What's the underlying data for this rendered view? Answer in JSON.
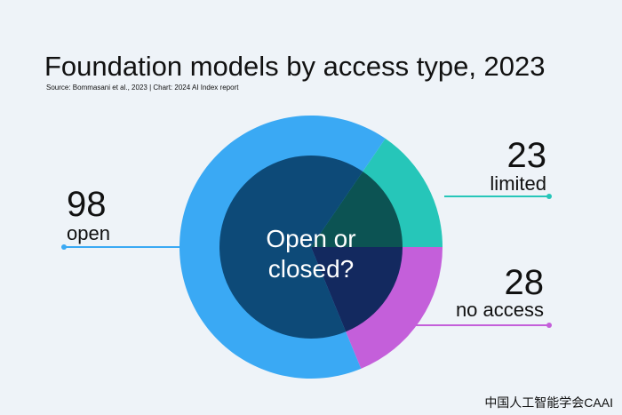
{
  "chart_data": {
    "type": "donut",
    "title": "Foundation models by access type, 2023",
    "subtitle": "Source: Bommasani et al., 2023 | Chart: 2024 AI Index report",
    "center_label": [
      "Open or",
      "closed?"
    ],
    "categories": [
      "open",
      "limited",
      "no access"
    ],
    "values": [
      98,
      23,
      28
    ],
    "colors": [
      "#3aa9f4",
      "#26c6b9",
      "#c45fda"
    ],
    "inner_colors": [
      "#0d4a78",
      "#0c5353",
      "#13295f"
    ],
    "watermark": "中国人工智能学会CAAI"
  }
}
